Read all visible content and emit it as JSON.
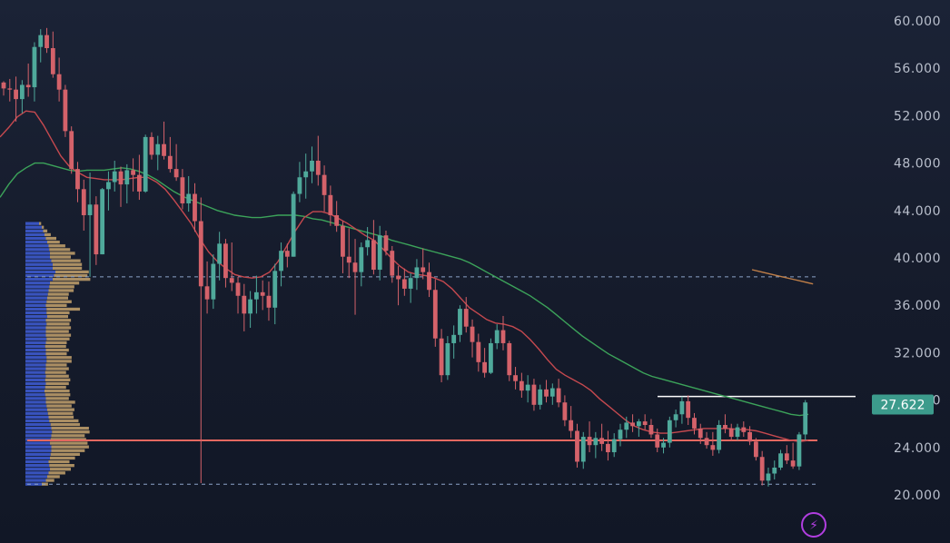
{
  "chart_data": {
    "type": "candlestick",
    "y_ticks": [
      "20.000",
      "24.000",
      "28.000",
      "32.000",
      "36.000",
      "40.000",
      "44.000",
      "48.000",
      "52.000",
      "56.000",
      "60.000"
    ],
    "ylim": [
      20,
      60
    ],
    "grid": false,
    "current_price": {
      "label": "27.622",
      "value": 27.622
    },
    "badge_glyph": "⚡",
    "colors": {
      "up": "#4fa99b",
      "down": "#d4626a",
      "ma_short": "#c5494f",
      "ma_long": "#3ca35a",
      "ma_third": "#c07f48",
      "profile_blue": "#3f5ed8",
      "profile_tan": "#c5a36d",
      "level": "#e46860",
      "current_price": "#3c9b8c",
      "accent": "#b13ee0"
    },
    "levels": [
      {
        "name": "upper-dashed",
        "value": 38.4,
        "style": "dashed"
      },
      {
        "name": "solid-level",
        "value": 24.6,
        "style": "solid"
      },
      {
        "name": "lower-dashed",
        "value": 20.9,
        "style": "dashed"
      },
      {
        "name": "resistance-line",
        "value": 28.3,
        "style": "solid-white"
      }
    ],
    "candles": [
      [
        54.8,
        54.9,
        53.7,
        54.3
      ],
      [
        54.3,
        55.1,
        53.2,
        54.2
      ],
      [
        54.2,
        55.3,
        51.5,
        53.4
      ],
      [
        53.4,
        55.0,
        52.2,
        54.6
      ],
      [
        54.6,
        56.4,
        53.6,
        54.4
      ],
      [
        54.4,
        58.2,
        53.2,
        57.8
      ],
      [
        57.8,
        59.3,
        56.5,
        58.8
      ],
      [
        58.8,
        59.4,
        57.3,
        57.7
      ],
      [
        57.7,
        59.1,
        55.2,
        55.5
      ],
      [
        55.5,
        56.9,
        53.2,
        54.2
      ],
      [
        54.2,
        54.6,
        50.2,
        50.7
      ],
      [
        50.7,
        51.1,
        47.1,
        47.5
      ],
      [
        47.5,
        48.1,
        44.7,
        45.8
      ],
      [
        45.8,
        46.6,
        42.3,
        43.6
      ],
      [
        43.6,
        47.2,
        38.4,
        44.5
      ],
      [
        44.5,
        45.2,
        39.4,
        40.3
      ],
      [
        40.3,
        45.9,
        40.3,
        45.8
      ],
      [
        45.8,
        47.3,
        44.0,
        46.4
      ],
      [
        46.4,
        48.2,
        45.6,
        47.3
      ],
      [
        47.3,
        47.7,
        44.3,
        46.2
      ],
      [
        46.2,
        47.9,
        44.6,
        47.4
      ],
      [
        47.4,
        48.4,
        45.6,
        47.0
      ],
      [
        47.0,
        48.7,
        44.9,
        45.6
      ],
      [
        45.6,
        50.4,
        45.5,
        50.2
      ],
      [
        50.2,
        50.6,
        48.3,
        48.7
      ],
      [
        48.7,
        50.3,
        47.4,
        49.6
      ],
      [
        49.6,
        51.5,
        48.3,
        48.6
      ],
      [
        48.6,
        50.2,
        47.2,
        47.5
      ],
      [
        47.5,
        49.6,
        46.5,
        46.8
      ],
      [
        46.8,
        47.5,
        44.1,
        44.6
      ],
      [
        44.6,
        46.9,
        43.9,
        45.4
      ],
      [
        45.4,
        46.3,
        42.2,
        43.1
      ],
      [
        43.1,
        45.1,
        21.0,
        37.6
      ],
      [
        37.6,
        39.7,
        35.3,
        36.5
      ],
      [
        36.5,
        40.3,
        35.7,
        39.5
      ],
      [
        39.5,
        42.2,
        38.1,
        41.2
      ],
      [
        41.2,
        41.6,
        37.5,
        38.3
      ],
      [
        38.3,
        41.3,
        37.2,
        37.9
      ],
      [
        37.9,
        38.4,
        35.3,
        36.8
      ],
      [
        36.8,
        37.8,
        33.8,
        35.3
      ],
      [
        35.3,
        37.2,
        34.1,
        36.5
      ],
      [
        36.5,
        38.5,
        35.3,
        37.1
      ],
      [
        37.1,
        38.1,
        35.6,
        36.8
      ],
      [
        36.8,
        38.0,
        34.7,
        35.8
      ],
      [
        35.8,
        39.5,
        34.4,
        38.9
      ],
      [
        38.9,
        41.3,
        37.6,
        40.6
      ],
      [
        40.6,
        41.2,
        39.2,
        40.1
      ],
      [
        40.1,
        45.6,
        40.1,
        45.4
      ],
      [
        45.4,
        48.1,
        44.7,
        46.8
      ],
      [
        46.8,
        48.8,
        45.0,
        47.3
      ],
      [
        47.3,
        49.4,
        46.3,
        48.2
      ],
      [
        48.2,
        50.3,
        46.1,
        47.0
      ],
      [
        47.0,
        47.8,
        43.9,
        45.3
      ],
      [
        45.3,
        46.1,
        42.7,
        43.6
      ],
      [
        43.6,
        44.8,
        42.2,
        42.7
      ],
      [
        42.7,
        43.1,
        38.7,
        40.1
      ],
      [
        40.1,
        42.5,
        38.3,
        39.6
      ],
      [
        39.6,
        41.6,
        35.2,
        38.8
      ],
      [
        38.8,
        41.3,
        37.6,
        40.9
      ],
      [
        40.9,
        42.6,
        40.2,
        41.5
      ],
      [
        41.5,
        43.2,
        38.6,
        39.0
      ],
      [
        39.0,
        42.7,
        38.1,
        41.9
      ],
      [
        41.9,
        42.3,
        40.2,
        40.6
      ],
      [
        40.6,
        41.0,
        37.9,
        38.5
      ],
      [
        38.5,
        39.3,
        36.0,
        38.2
      ],
      [
        38.2,
        39.1,
        36.8,
        37.4
      ],
      [
        37.4,
        38.7,
        36.2,
        38.3
      ],
      [
        38.3,
        39.9,
        37.3,
        39.2
      ],
      [
        39.2,
        40.8,
        38.2,
        38.8
      ],
      [
        38.8,
        39.6,
        36.7,
        37.3
      ],
      [
        37.3,
        38.2,
        32.5,
        33.2
      ],
      [
        33.2,
        34.0,
        29.5,
        30.1
      ],
      [
        30.1,
        33.4,
        29.7,
        32.8
      ],
      [
        32.8,
        34.3,
        31.5,
        33.5
      ],
      [
        33.5,
        36.0,
        32.9,
        35.7
      ],
      [
        35.7,
        36.7,
        33.7,
        34.2
      ],
      [
        34.2,
        34.8,
        31.6,
        32.9
      ],
      [
        32.9,
        33.6,
        30.4,
        31.2
      ],
      [
        31.2,
        32.4,
        29.9,
        30.3
      ],
      [
        30.3,
        33.2,
        30.2,
        32.8
      ],
      [
        32.8,
        34.4,
        32.3,
        33.9
      ],
      [
        33.9,
        35.1,
        32.2,
        32.8
      ],
      [
        32.8,
        33.0,
        29.6,
        30.1
      ],
      [
        30.1,
        30.8,
        28.9,
        29.6
      ],
      [
        29.6,
        30.3,
        28.2,
        28.8
      ],
      [
        28.8,
        30.1,
        27.8,
        29.3
      ],
      [
        29.3,
        29.8,
        27.1,
        27.6
      ],
      [
        27.6,
        29.3,
        27.2,
        28.9
      ],
      [
        28.9,
        29.7,
        27.8,
        28.3
      ],
      [
        28.3,
        29.4,
        27.6,
        29.0
      ],
      [
        29.0,
        29.8,
        27.4,
        27.8
      ],
      [
        27.8,
        28.4,
        25.8,
        26.3
      ],
      [
        26.3,
        27.5,
        24.8,
        25.4
      ],
      [
        25.4,
        26.0,
        22.3,
        22.8
      ],
      [
        22.8,
        25.3,
        22.2,
        24.9
      ],
      [
        24.9,
        26.2,
        23.6,
        24.2
      ],
      [
        24.2,
        25.3,
        23.1,
        24.8
      ],
      [
        24.8,
        26.0,
        23.7,
        24.3
      ],
      [
        24.3,
        25.4,
        22.9,
        23.6
      ],
      [
        23.6,
        25.2,
        23.2,
        24.7
      ],
      [
        24.7,
        26.0,
        24.1,
        25.5
      ],
      [
        25.5,
        26.6,
        24.8,
        26.1
      ],
      [
        26.1,
        26.8,
        25.3,
        25.8
      ],
      [
        25.8,
        26.4,
        24.9,
        26.2
      ],
      [
        26.2,
        26.8,
        25.5,
        25.9
      ],
      [
        25.9,
        26.4,
        24.8,
        25.1
      ],
      [
        25.1,
        25.6,
        23.6,
        24.0
      ],
      [
        24.0,
        24.8,
        23.5,
        24.4
      ],
      [
        24.4,
        26.6,
        24.0,
        26.3
      ],
      [
        26.3,
        27.2,
        25.7,
        26.8
      ],
      [
        26.8,
        28.3,
        26.0,
        27.9
      ],
      [
        27.9,
        28.4,
        25.9,
        26.5
      ],
      [
        26.5,
        26.9,
        25.1,
        25.6
      ],
      [
        25.6,
        26.0,
        24.3,
        24.8
      ],
      [
        24.8,
        25.3,
        23.9,
        24.2
      ],
      [
        24.2,
        25.3,
        23.3,
        23.8
      ],
      [
        23.8,
        26.3,
        23.5,
        25.9
      ],
      [
        25.9,
        26.8,
        25.2,
        25.6
      ],
      [
        25.6,
        26.0,
        24.6,
        24.9
      ],
      [
        24.9,
        26.0,
        24.6,
        25.7
      ],
      [
        25.7,
        26.2,
        24.9,
        25.3
      ],
      [
        25.3,
        25.8,
        24.2,
        24.5
      ],
      [
        24.5,
        24.8,
        22.9,
        23.2
      ],
      [
        23.2,
        23.7,
        20.8,
        21.2
      ],
      [
        21.2,
        22.3,
        20.7,
        21.8
      ],
      [
        21.8,
        22.9,
        21.3,
        22.3
      ],
      [
        22.3,
        23.8,
        22.1,
        23.5
      ],
      [
        23.5,
        24.2,
        22.6,
        22.9
      ],
      [
        22.9,
        24.4,
        22.2,
        22.4
      ],
      [
        22.4,
        25.3,
        22.1,
        25.1
      ],
      [
        25.1,
        28.0,
        24.6,
        27.8
      ]
    ],
    "series": [
      {
        "values": [
          50.2,
          51.0,
          51.9,
          52.4,
          52.3,
          51.2,
          49.9,
          48.6,
          47.7,
          47.2,
          46.8,
          46.7,
          46.6,
          46.6,
          46.6,
          46.7,
          46.8,
          46.8,
          46.4,
          45.8,
          44.9,
          43.9,
          42.9,
          41.6,
          40.5,
          39.7,
          39.1,
          38.6,
          38.4,
          38.3,
          38.4,
          38.8,
          39.7,
          41.0,
          42.3,
          43.4,
          43.9,
          43.9,
          43.7,
          43.3,
          42.9,
          42.4,
          41.9,
          41.5,
          40.8,
          40.0,
          39.3,
          38.8,
          38.6,
          38.5,
          38.3,
          38.0,
          37.4,
          36.6,
          35.8,
          35.3,
          34.8,
          34.5,
          34.4,
          34.2,
          33.8,
          33.1,
          32.3,
          31.4,
          30.6,
          30.1,
          29.7,
          29.3,
          28.8,
          28.1,
          27.5,
          26.9,
          26.3,
          25.8,
          25.5,
          25.3,
          25.2,
          25.2,
          25.3,
          25.4,
          25.5,
          25.6,
          25.6,
          25.6,
          25.6,
          25.5,
          25.5,
          25.4,
          25.2,
          25.0,
          24.8,
          24.6,
          24.5,
          24.6
        ]
      },
      {
        "values": [
          45.1,
          46.2,
          47.1,
          47.6,
          48.0,
          48.0,
          47.8,
          47.6,
          47.4,
          47.3,
          47.4,
          47.4,
          47.4,
          47.5,
          47.6,
          47.5,
          47.3,
          47.0,
          46.6,
          46.1,
          45.6,
          45.2,
          44.9,
          44.6,
          44.3,
          44.0,
          43.8,
          43.6,
          43.5,
          43.4,
          43.4,
          43.5,
          43.6,
          43.6,
          43.6,
          43.5,
          43.3,
          43.2,
          43.0,
          42.8,
          42.6,
          42.4,
          42.2,
          42.0,
          41.8,
          41.5,
          41.3,
          41.1,
          40.9,
          40.7,
          40.5,
          40.3,
          40.1,
          39.9,
          39.6,
          39.2,
          38.8,
          38.4,
          38.0,
          37.6,
          37.2,
          36.8,
          36.3,
          35.8,
          35.2,
          34.6,
          34.0,
          33.4,
          32.9,
          32.4,
          31.9,
          31.5,
          31.1,
          30.7,
          30.3,
          30.0,
          29.8,
          29.6,
          29.4,
          29.2,
          29.0,
          28.8,
          28.6,
          28.4,
          28.2,
          28.0,
          27.8,
          27.6,
          27.4,
          27.2,
          27.0,
          26.8,
          26.7,
          26.8
        ]
      },
      {
        "values": [
          39.0,
          38.8,
          38.6,
          38.4,
          38.2,
          38.0,
          37.8
        ]
      }
    ],
    "volume_profile": [
      [
        24,
        3
      ],
      [
        30,
        4
      ],
      [
        32,
        6
      ],
      [
        34,
        8
      ],
      [
        36,
        10
      ],
      [
        35,
        12
      ],
      [
        34,
        10
      ],
      [
        36,
        12
      ],
      [
        37,
        14
      ],
      [
        38,
        16
      ],
      [
        38,
        18
      ],
      [
        36,
        18
      ],
      [
        37,
        17
      ],
      [
        38,
        16
      ],
      [
        39,
        18
      ],
      [
        38,
        18
      ],
      [
        37,
        14
      ],
      [
        35,
        14
      ],
      [
        34,
        12
      ],
      [
        33,
        12
      ],
      [
        32,
        13
      ],
      [
        31,
        12
      ],
      [
        30,
        14
      ],
      [
        30,
        11
      ],
      [
        29,
        12
      ],
      [
        28,
        12
      ],
      [
        29,
        10
      ],
      [
        30,
        11
      ],
      [
        29,
        12
      ],
      [
        30,
        11
      ],
      [
        29,
        10
      ],
      [
        30,
        11
      ],
      [
        30,
        10
      ],
      [
        31,
        12
      ],
      [
        31,
        12
      ],
      [
        30,
        10
      ],
      [
        30,
        11
      ],
      [
        29,
        10
      ],
      [
        30,
        10
      ],
      [
        31,
        11
      ],
      [
        30,
        12
      ],
      [
        30,
        11
      ],
      [
        30,
        12
      ],
      [
        31,
        11
      ],
      [
        30,
        12
      ],
      [
        32,
        10
      ],
      [
        31,
        11
      ],
      [
        31,
        16
      ],
      [
        30,
        10
      ],
      [
        31,
        12
      ],
      [
        32,
        10
      ],
      [
        33,
        10
      ],
      [
        34,
        12
      ],
      [
        35,
        12
      ],
      [
        36,
        14
      ],
      [
        40,
        18
      ],
      [
        42,
        16
      ],
      [
        44,
        16
      ],
      [
        40,
        14
      ],
      [
        40,
        14
      ],
      [
        38,
        14
      ],
      [
        36,
        10
      ],
      [
        36,
        12
      ],
      [
        35,
        10
      ],
      [
        34,
        8
      ],
      [
        32,
        6
      ],
      [
        30,
        5
      ],
      [
        28,
        3
      ],
      [
        26,
        2
      ],
      [
        24,
        1
      ],
      [
        20,
        1
      ]
    ]
  }
}
